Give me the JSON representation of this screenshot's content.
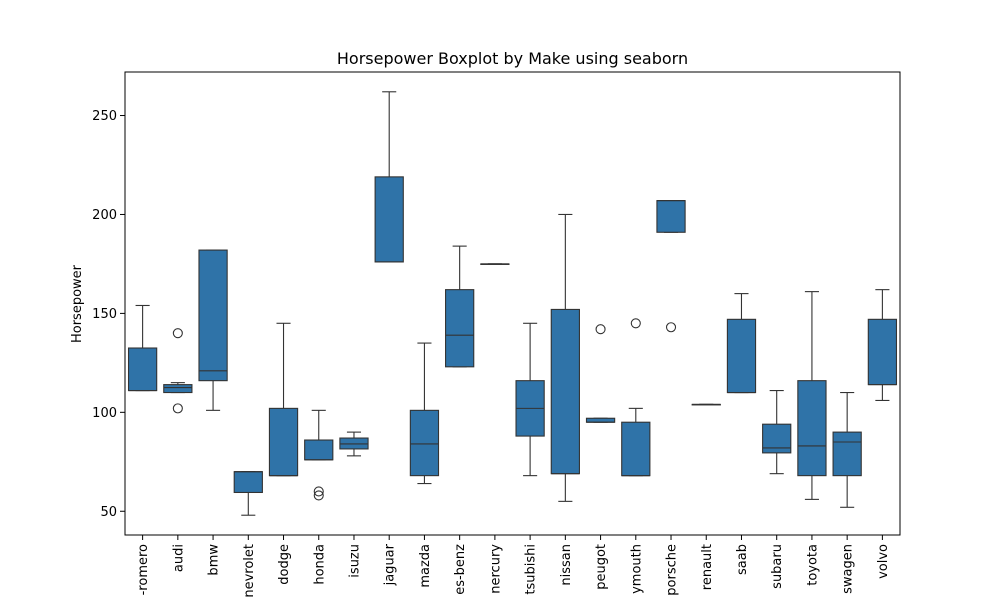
{
  "chart_data": {
    "type": "boxplot",
    "title": "Horsepower Boxplot by Make using seaborn",
    "xlabel": "",
    "ylabel": "Horsepower",
    "ylim": [
      38,
      272
    ],
    "yticks": [
      50,
      100,
      150,
      200,
      250
    ],
    "grid": false,
    "color": "#2f73a8",
    "line_color": "#333333",
    "categories": [
      "alfa-romero",
      "audi",
      "bmw",
      "chevrolet",
      "dodge",
      "honda",
      "isuzu",
      "jaguar",
      "mazda",
      "mercedes-benz",
      "mercury",
      "mitsubishi",
      "nissan",
      "peugot",
      "plymouth",
      "porsche",
      "renault",
      "saab",
      "subaru",
      "toyota",
      "volkswagen",
      "volvo"
    ],
    "tick_labels": [
      "-romero",
      "audi",
      "bmw",
      "nevrolet",
      "dodge",
      "honda",
      "isuzu",
      "jaguar",
      "mazda",
      "es-benz",
      "nercury",
      "tsubishi",
      "nissan",
      "peugot",
      "ymouth",
      "porsche",
      "renault",
      "saab",
      "subaru",
      "toyota",
      "swagen",
      "volvo"
    ],
    "boxes": [
      {
        "category": "alfa-romero",
        "whisker_low": 111,
        "q1": 111,
        "median": 111,
        "q3": 132.5,
        "whisker_high": 154,
        "outliers": []
      },
      {
        "category": "audi",
        "whisker_low": 110,
        "q1": 110,
        "median": 112.5,
        "q3": 114,
        "whisker_high": 115,
        "outliers": [
          102,
          140
        ]
      },
      {
        "category": "bmw",
        "whisker_low": 101,
        "q1": 116,
        "median": 121,
        "q3": 182,
        "whisker_high": 182,
        "outliers": []
      },
      {
        "category": "chevrolet",
        "whisker_low": 48,
        "q1": 59.5,
        "median": 70,
        "q3": 70,
        "whisker_high": 70,
        "outliers": []
      },
      {
        "category": "dodge",
        "whisker_low": 68,
        "q1": 68,
        "median": 68,
        "q3": 102,
        "whisker_high": 145,
        "outliers": []
      },
      {
        "category": "honda",
        "whisker_low": 76,
        "q1": 76,
        "median": 76,
        "q3": 86,
        "whisker_high": 101,
        "outliers": [
          58,
          60
        ]
      },
      {
        "category": "isuzu",
        "whisker_low": 78,
        "q1": 81.5,
        "median": 84,
        "q3": 87,
        "whisker_high": 90,
        "outliers": []
      },
      {
        "category": "jaguar",
        "whisker_low": 176,
        "q1": 176,
        "median": 176,
        "q3": 219,
        "whisker_high": 262,
        "outliers": []
      },
      {
        "category": "mazda",
        "whisker_low": 64,
        "q1": 68,
        "median": 84,
        "q3": 101,
        "whisker_high": 135,
        "outliers": []
      },
      {
        "category": "mercedes-benz",
        "whisker_low": 123,
        "q1": 123,
        "median": 139,
        "q3": 162,
        "whisker_high": 184,
        "outliers": []
      },
      {
        "category": "mercury",
        "whisker_low": 175,
        "q1": 175,
        "median": 175,
        "q3": 175,
        "whisker_high": 175,
        "outliers": []
      },
      {
        "category": "mitsubishi",
        "whisker_low": 68,
        "q1": 88,
        "median": 102,
        "q3": 116,
        "whisker_high": 145,
        "outliers": []
      },
      {
        "category": "nissan",
        "whisker_low": 55,
        "q1": 69,
        "median": 69,
        "q3": 152,
        "whisker_high": 200,
        "outliers": []
      },
      {
        "category": "peugot",
        "whisker_low": 95,
        "q1": 95,
        "median": 95,
        "q3": 97,
        "whisker_high": 97,
        "outliers": [
          142
        ]
      },
      {
        "category": "plymouth",
        "whisker_low": 68,
        "q1": 68,
        "median": 68,
        "q3": 95,
        "whisker_high": 102,
        "outliers": [
          145
        ]
      },
      {
        "category": "porsche",
        "whisker_low": 191,
        "q1": 191,
        "median": 207,
        "q3": 207,
        "whisker_high": 207,
        "outliers": [
          143
        ]
      },
      {
        "category": "renault",
        "whisker_low": 104,
        "q1": 104,
        "median": 104,
        "q3": 104,
        "whisker_high": 104,
        "outliers": []
      },
      {
        "category": "saab",
        "whisker_low": 110,
        "q1": 110,
        "median": 110,
        "q3": 147,
        "whisker_high": 160,
        "outliers": []
      },
      {
        "category": "subaru",
        "whisker_low": 69,
        "q1": 79.5,
        "median": 82,
        "q3": 94,
        "whisker_high": 111,
        "outliers": []
      },
      {
        "category": "toyota",
        "whisker_low": 56,
        "q1": 68,
        "median": 83,
        "q3": 116,
        "whisker_high": 161,
        "outliers": []
      },
      {
        "category": "volkswagen",
        "whisker_low": 52,
        "q1": 68,
        "median": 85,
        "q3": 90,
        "whisker_high": 110,
        "outliers": []
      },
      {
        "category": "volvo",
        "whisker_low": 106,
        "q1": 114,
        "median": 114,
        "q3": 147,
        "whisker_high": 162,
        "outliers": []
      }
    ]
  }
}
